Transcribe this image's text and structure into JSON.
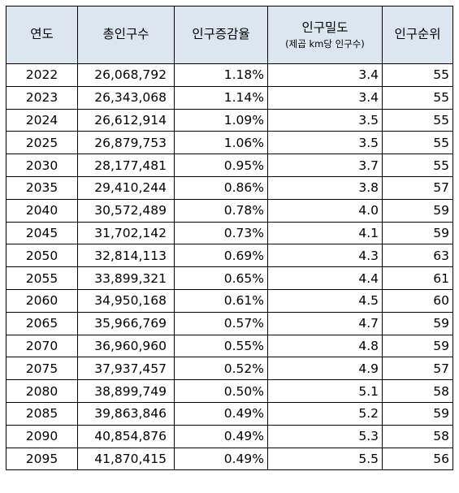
{
  "headers": {
    "year": "연도",
    "population": "총인구수",
    "growth_rate": "인구증감율",
    "density": "인구밀도",
    "density_unit": "(제곱 km당 인구수)",
    "rank": "인구순위"
  },
  "rows": [
    {
      "year": "2022",
      "population": "26,068,792",
      "growth_rate": "1.18%",
      "density": "3.4",
      "rank": "55"
    },
    {
      "year": "2023",
      "population": "26,343,068",
      "growth_rate": "1.14%",
      "density": "3.4",
      "rank": "55"
    },
    {
      "year": "2024",
      "population": "26,612,914",
      "growth_rate": "1.09%",
      "density": "3.5",
      "rank": "55"
    },
    {
      "year": "2025",
      "population": "26,879,753",
      "growth_rate": "1.06%",
      "density": "3.5",
      "rank": "55"
    },
    {
      "year": "2030",
      "population": "28,177,481",
      "growth_rate": "0.95%",
      "density": "3.7",
      "rank": "55"
    },
    {
      "year": "2035",
      "population": "29,410,244",
      "growth_rate": "0.86%",
      "density": "3.8",
      "rank": "57"
    },
    {
      "year": "2040",
      "population": "30,572,489",
      "growth_rate": "0.78%",
      "density": "4.0",
      "rank": "59"
    },
    {
      "year": "2045",
      "population": "31,702,142",
      "growth_rate": "0.73%",
      "density": "4.1",
      "rank": "59"
    },
    {
      "year": "2050",
      "population": "32,814,113",
      "growth_rate": "0.69%",
      "density": "4.3",
      "rank": "63"
    },
    {
      "year": "2055",
      "population": "33,899,321",
      "growth_rate": "0.65%",
      "density": "4.4",
      "rank": "61"
    },
    {
      "year": "2060",
      "population": "34,950,168",
      "growth_rate": "0.61%",
      "density": "4.5",
      "rank": "60"
    },
    {
      "year": "2065",
      "population": "35,966,769",
      "growth_rate": "0.57%",
      "density": "4.7",
      "rank": "59"
    },
    {
      "year": "2070",
      "population": "36,960,960",
      "growth_rate": "0.55%",
      "density": "4.8",
      "rank": "59"
    },
    {
      "year": "2075",
      "population": "37,937,457",
      "growth_rate": "0.52%",
      "density": "4.9",
      "rank": "57"
    },
    {
      "year": "2080",
      "population": "38,899,749",
      "growth_rate": "0.50%",
      "density": "5.1",
      "rank": "58"
    },
    {
      "year": "2085",
      "population": "39,863,846",
      "growth_rate": "0.49%",
      "density": "5.2",
      "rank": "59"
    },
    {
      "year": "2090",
      "population": "40,854,876",
      "growth_rate": "0.49%",
      "density": "5.3",
      "rank": "58"
    },
    {
      "year": "2095",
      "population": "41,870,415",
      "growth_rate": "0.49%",
      "density": "5.5",
      "rank": "56"
    }
  ]
}
